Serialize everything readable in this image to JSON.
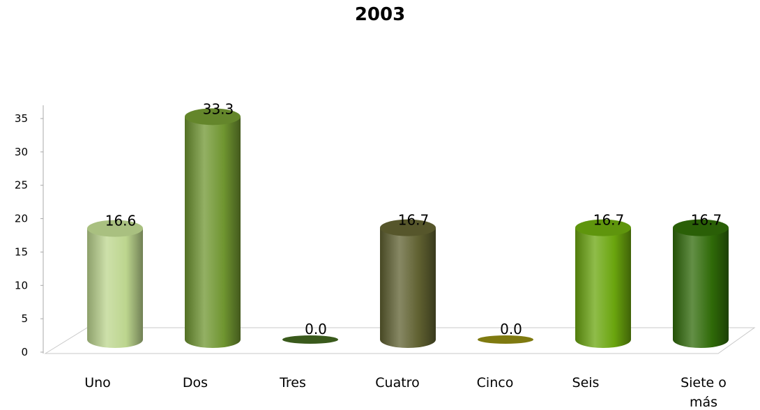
{
  "chart_data": {
    "type": "bar",
    "title": "2003",
    "categories": [
      "Uno",
      "Dos",
      "Tres",
      "Cuatro",
      "Cinco",
      "Seis",
      "Siete o más"
    ],
    "category_lines": [
      [
        "Uno"
      ],
      [
        "Dos"
      ],
      [
        "Tres"
      ],
      [
        "Cuatro"
      ],
      [
        "Cinco"
      ],
      [
        "Seis"
      ],
      [
        "Siete o",
        "más"
      ]
    ],
    "values": [
      16.6,
      33.3,
      0.0,
      16.7,
      0.0,
      16.7,
      16.7
    ],
    "value_labels": [
      "16.6",
      "33.3",
      "0.0",
      "16.7",
      "0.0",
      "16.7",
      "16.7"
    ],
    "colors": [
      "#bcd58e",
      "#6f9530",
      "#3a5a1c",
      "#5f6030",
      "#7f7a10",
      "#6aa50e",
      "#2f6a08"
    ],
    "ylim": [
      0,
      35
    ],
    "yticks": [
      0,
      5,
      10,
      15,
      20,
      25,
      30,
      35
    ],
    "xlabel": "",
    "ylabel": "",
    "legend": "none",
    "grid": false,
    "style": "3d-cylinder"
  }
}
